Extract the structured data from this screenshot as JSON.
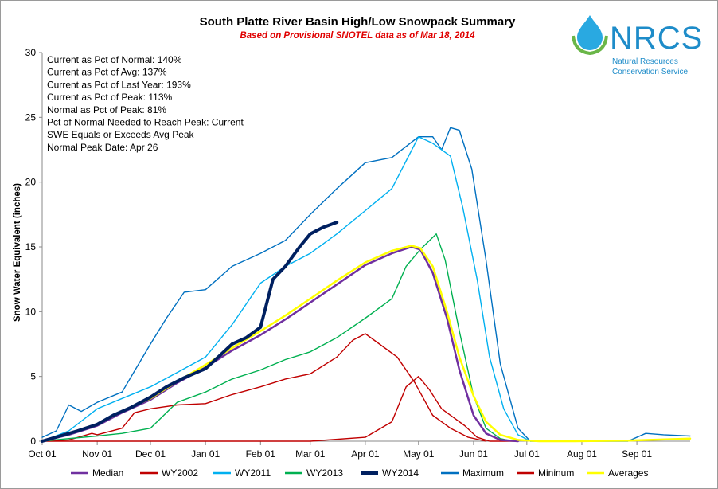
{
  "chart_data": {
    "type": "line",
    "title": "South Platte River Basin High/Low Snowpack Summary",
    "subtitle": "Based on Provisional SNOTEL data as of Mar 18, 2014",
    "ylabel": "Snow Water Equivalent (inches)",
    "xlabel": "",
    "ylim": [
      0,
      30
    ],
    "yticks": [
      "0",
      "5",
      "10",
      "15",
      "20",
      "25",
      "30"
    ],
    "xlim": [
      0,
      365
    ],
    "xticks": [
      {
        "label": "Oct 01",
        "day": 0
      },
      {
        "label": "Nov 01",
        "day": 31
      },
      {
        "label": "Dec 01",
        "day": 61
      },
      {
        "label": "Jan 01",
        "day": 92
      },
      {
        "label": "Feb 01",
        "day": 123
      },
      {
        "label": "Mar 01",
        "day": 151
      },
      {
        "label": "Apr 01",
        "day": 182
      },
      {
        "label": "May 01",
        "day": 212
      },
      {
        "label": "Jun 01",
        "day": 243
      },
      {
        "label": "Jul 01",
        "day": 273
      },
      {
        "label": "Aug 01",
        "day": 304
      },
      {
        "label": "Sep 01",
        "day": 335
      }
    ],
    "grid": false,
    "legend_position": "bottom",
    "stats": [
      "Current  as Pct of Normal:  140%",
      "Current  as Pct of Avg:  137%",
      "Current  as Pct of Last Year:  193%",
      "Current  as Pct of Peak:  113%",
      "Normal  as Pct of Peak:  81%",
      "Pct of Normal  Needed to Reach Peak: Current",
      "SWE Equals  or Exceeds  Avg Peak",
      "Normal  Peak Date:  Apr 26"
    ],
    "series": [
      {
        "name": "Median",
        "color": "#7030a0",
        "x": [
          0,
          15,
          31,
          45,
          61,
          76,
          92,
          107,
          123,
          137,
          151,
          166,
          182,
          197,
          208,
          213,
          220,
          228,
          235,
          243,
          250,
          258,
          268
        ],
        "y": [
          0,
          0.5,
          1.2,
          2.2,
          3.2,
          4.5,
          5.7,
          7.0,
          8.2,
          9.4,
          10.7,
          12.1,
          13.6,
          14.5,
          15.0,
          14.8,
          13.0,
          9.5,
          5.5,
          2.0,
          0.6,
          0.1,
          0
        ]
      },
      {
        "name": "WY2002",
        "color": "#c00000",
        "x": [
          0,
          15,
          28,
          31,
          45,
          52,
          61,
          76,
          92,
          107,
          123,
          137,
          151,
          166,
          175,
          182,
          190,
          200,
          210,
          220,
          230,
          240,
          250
        ],
        "y": [
          0,
          0.1,
          0.6,
          0.5,
          1.0,
          2.2,
          2.5,
          2.8,
          2.9,
          3.6,
          4.2,
          4.8,
          5.2,
          6.5,
          7.8,
          8.3,
          7.5,
          6.5,
          4.5,
          2.0,
          1.0,
          0.3,
          0
        ]
      },
      {
        "name": "WY2011",
        "color": "#00b0f0",
        "x": [
          0,
          15,
          31,
          45,
          61,
          76,
          92,
          107,
          123,
          137,
          151,
          166,
          182,
          197,
          212,
          220,
          230,
          237,
          245,
          252,
          260,
          268,
          275
        ],
        "y": [
          0,
          0.8,
          2.5,
          3.3,
          4.2,
          5.3,
          6.5,
          9.0,
          12.2,
          13.5,
          14.5,
          16.0,
          17.8,
          19.5,
          23.5,
          23.0,
          22.0,
          18.0,
          12.5,
          6.5,
          2.5,
          0.5,
          0
        ]
      },
      {
        "name": "WY2013",
        "color": "#00b050",
        "x": [
          0,
          15,
          31,
          45,
          61,
          76,
          92,
          107,
          123,
          137,
          151,
          166,
          182,
          197,
          205,
          213,
          222,
          227,
          235,
          243,
          250,
          258,
          265
        ],
        "y": [
          0,
          0.2,
          0.4,
          0.6,
          1.0,
          3.0,
          3.8,
          4.8,
          5.5,
          6.3,
          6.9,
          8.0,
          9.5,
          11.0,
          13.5,
          14.8,
          16.0,
          14.0,
          8.5,
          3.5,
          1.0,
          0.2,
          0
        ]
      },
      {
        "name": "WY2014",
        "color": "#002060",
        "x": [
          0,
          10,
          20,
          31,
          40,
          50,
          61,
          70,
          80,
          92,
          100,
          107,
          115,
          123,
          130,
          137,
          145,
          151,
          158,
          166
        ],
        "y": [
          0,
          0.4,
          0.8,
          1.3,
          2.0,
          2.6,
          3.4,
          4.2,
          4.9,
          5.6,
          6.6,
          7.5,
          8.0,
          8.8,
          12.5,
          13.5,
          15.0,
          16.0,
          16.5,
          16.9
        ]
      },
      {
        "name": "Maximum",
        "color": "#0070c0",
        "x": [
          0,
          8,
          15,
          22,
          31,
          45,
          61,
          70,
          80,
          92,
          107,
          123,
          137,
          151,
          166,
          182,
          197,
          212,
          220,
          225,
          230,
          235,
          242,
          250,
          258,
          268,
          275,
          330,
          340,
          350,
          365
        ],
        "y": [
          0.3,
          0.8,
          2.8,
          2.3,
          3.0,
          3.8,
          7.5,
          9.5,
          11.5,
          11.7,
          13.5,
          14.5,
          15.5,
          17.5,
          19.5,
          21.5,
          21.9,
          23.5,
          23.5,
          22.5,
          24.2,
          24.0,
          21.0,
          14.0,
          6.0,
          1.0,
          0,
          0,
          0.6,
          0.5,
          0.4
        ]
      },
      {
        "name": "Mininum",
        "color": "#c00000",
        "x": [
          0,
          31,
          61,
          92,
          123,
          151,
          182,
          197,
          205,
          212,
          218,
          225,
          232,
          238,
          245,
          252,
          260,
          268
        ],
        "y": [
          0,
          0,
          0,
          0,
          0,
          0,
          0.3,
          1.5,
          4.2,
          5.0,
          4.0,
          2.5,
          1.8,
          1.2,
          0.3,
          0,
          0,
          0
        ]
      },
      {
        "name": "Averages",
        "color": "#ffff00",
        "x": [
          0,
          15,
          31,
          45,
          61,
          76,
          92,
          107,
          123,
          137,
          151,
          166,
          182,
          197,
          208,
          213,
          220,
          228,
          235,
          243,
          250,
          258,
          268,
          280,
          300,
          330,
          365
        ],
        "y": [
          0,
          0.6,
          1.3,
          2.3,
          3.3,
          4.6,
          5.9,
          7.2,
          8.5,
          9.7,
          11.0,
          12.4,
          13.8,
          14.7,
          15.1,
          14.9,
          13.5,
          10.0,
          6.5,
          3.5,
          1.5,
          0.5,
          0.1,
          0,
          0,
          0.05,
          0.2
        ]
      }
    ]
  },
  "logo": {
    "text": "NRCS",
    "line1": "Natural Resources",
    "line2": "Conservation Service"
  }
}
